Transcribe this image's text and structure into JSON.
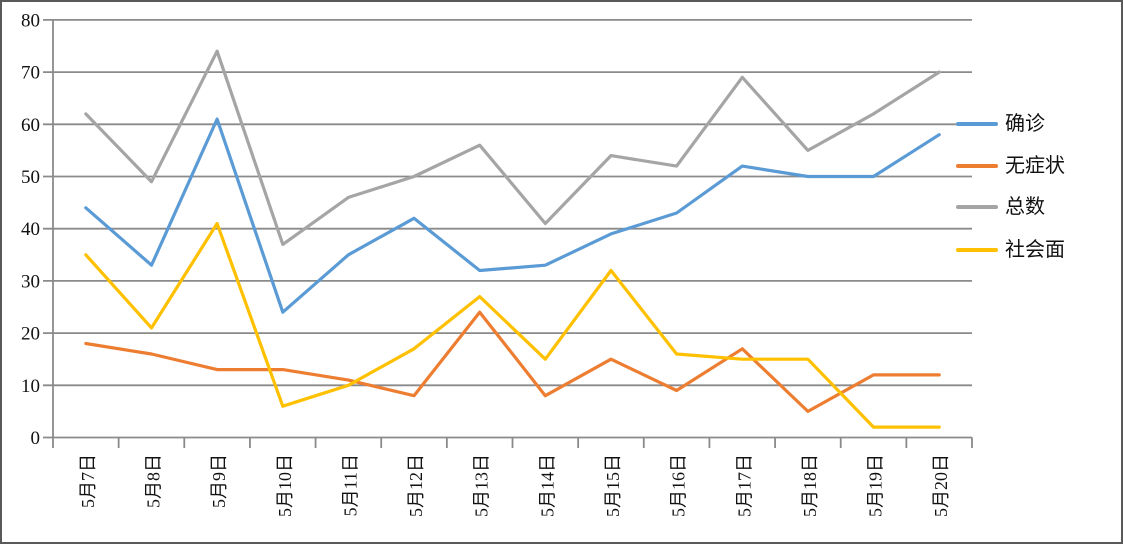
{
  "chart_data": {
    "type": "line",
    "title": "",
    "xlabel": "",
    "ylabel": "",
    "categories": [
      "5月7日",
      "5月8日",
      "5月9日",
      "5月10日",
      "5月11日",
      "5月12日",
      "5月13日",
      "5月14日",
      "5月15日",
      "5月16日",
      "5月17日",
      "5月18日",
      "5月19日",
      "5月20日"
    ],
    "series": [
      {
        "name": "确诊",
        "color": "#5B9BD5",
        "values": [
          44,
          33,
          61,
          24,
          35,
          42,
          32,
          33,
          39,
          43,
          52,
          50,
          50,
          58
        ]
      },
      {
        "name": "无症状",
        "color": "#ED7D31",
        "values": [
          18,
          16,
          13,
          13,
          11,
          8,
          24,
          8,
          15,
          9,
          17,
          5,
          12,
          12
        ]
      },
      {
        "name": "总数",
        "color": "#A5A5A5",
        "values": [
          62,
          49,
          74,
          37,
          46,
          50,
          56,
          41,
          54,
          52,
          69,
          55,
          62,
          70
        ]
      },
      {
        "name": "社会面",
        "color": "#FFC000",
        "values": [
          35,
          21,
          41,
          6,
          10,
          17,
          27,
          15,
          32,
          16,
          15,
          15,
          2,
          2
        ]
      }
    ],
    "ylim": [
      0,
      80
    ],
    "ytick_step": 10,
    "yticks": [
      "0",
      "10",
      "20",
      "30",
      "40",
      "50",
      "60",
      "70",
      "80"
    ],
    "grid": "horizontal",
    "legend_position": "right",
    "gridline_color": "#8a8a8a",
    "text_color": "#111111",
    "background": "#ffffff",
    "border_color": "#595959"
  }
}
